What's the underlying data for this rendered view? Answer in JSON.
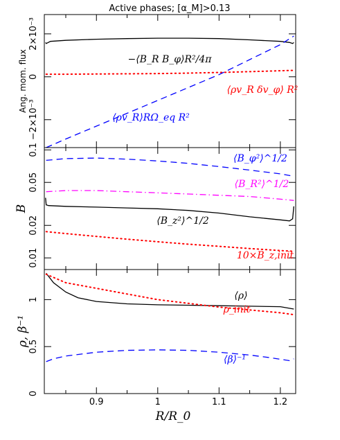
{
  "chart_data": [
    {
      "type": "line",
      "title": "Active phases; [α_M]>0.13",
      "ylabel": "Ang. mom. flux",
      "xlim": [
        0.815,
        1.225
      ],
      "ylim": [
        -0.0033,
        0.0029
      ],
      "yticks": [
        -0.002,
        0,
        0.002
      ],
      "yticklabels": [
        "−2×10⁻³",
        "0",
        "2×10⁻³"
      ],
      "series": [
        {
          "name": "−⟨B_R B_φ⟩R²/4π",
          "color": "#000000",
          "dash": "solid",
          "x": [
            0.817,
            0.818,
            0.825,
            0.85,
            0.9,
            0.95,
            1.0,
            1.05,
            1.1,
            1.15,
            1.2,
            1.215,
            1.22,
            1.222
          ],
          "y": [
            0.0016,
            0.00155,
            0.00165,
            0.0017,
            0.00175,
            0.00178,
            0.0018,
            0.0018,
            0.00178,
            0.00172,
            0.00165,
            0.0016,
            0.00155,
            0.0016
          ]
        },
        {
          "name": "⟨ρv_R δv_φ⟩R²",
          "color": "#ff0000",
          "dash": "dot",
          "x": [
            0.818,
            0.85,
            0.9,
            0.95,
            1.0,
            1.05,
            1.1,
            1.15,
            1.2,
            1.222
          ],
          "y": [
            0.00012,
            0.00012,
            0.00013,
            0.00014,
            0.00015,
            0.00017,
            0.0002,
            0.00024,
            0.00028,
            0.0003
          ]
        },
        {
          "name": "⟨ρv_R⟩RΩ_eq R²",
          "color": "#0000ff",
          "dash": "dash",
          "x": [
            0.818,
            0.85,
            0.9,
            0.95,
            1.0,
            1.05,
            1.1,
            1.15,
            1.2,
            1.222
          ],
          "y": [
            -0.0033,
            -0.0029,
            -0.0023,
            -0.0017,
            -0.0011,
            -0.0005,
            0.0001,
            0.0008,
            0.0015,
            0.0019
          ]
        }
      ],
      "annotations": [
        {
          "text": "−⟨B_R B_φ⟩R²/4π",
          "color": "#000000"
        },
        {
          "text": "⟨ρv_R δv_φ⟩ R²",
          "color": "#ff0000"
        },
        {
          "text": "⟨ρv_R⟩RΩ_eq R²",
          "color": "#0000ff"
        }
      ]
    },
    {
      "type": "line",
      "ylabel": "B",
      "yscale": "log",
      "ylim": [
        0.0078,
        0.105
      ],
      "yticks": [
        0.01,
        0.02,
        0.05,
        0.1
      ],
      "yticklabels": [
        "0.01",
        "0.02",
        "0.05",
        "0.1"
      ],
      "series": [
        {
          "name": "⟨B_φ²⟩^1/2",
          "color": "#0000ff",
          "dash": "dash",
          "x": [
            0.818,
            0.85,
            0.9,
            0.95,
            1.0,
            1.05,
            1.1,
            1.15,
            1.2,
            1.222
          ],
          "y": [
            0.08,
            0.083,
            0.084,
            0.082,
            0.079,
            0.075,
            0.07,
            0.065,
            0.06,
            0.057
          ]
        },
        {
          "name": "⟨B_R²⟩^1/2",
          "color": "#ff00ff",
          "dash": "dashdot",
          "x": [
            0.818,
            0.85,
            0.9,
            0.95,
            1.0,
            1.05,
            1.1,
            1.15,
            1.2,
            1.222
          ],
          "y": [
            0.041,
            0.042,
            0.042,
            0.041,
            0.04,
            0.039,
            0.038,
            0.037,
            0.035,
            0.034
          ]
        },
        {
          "name": "⟨B_z²⟩^1/2",
          "color": "#000000",
          "dash": "solid",
          "x": [
            0.817,
            0.818,
            0.822,
            0.85,
            0.9,
            0.95,
            1.0,
            1.05,
            1.1,
            1.15,
            1.2,
            1.215,
            1.22,
            1.222
          ],
          "y": [
            0.036,
            0.031,
            0.0305,
            0.03,
            0.0295,
            0.029,
            0.0285,
            0.0275,
            0.026,
            0.024,
            0.0225,
            0.022,
            0.023,
            0.03
          ]
        },
        {
          "name": "10×B_z,init",
          "color": "#ff0000",
          "dash": "dot",
          "x": [
            0.818,
            0.85,
            0.9,
            0.95,
            1.0,
            1.05,
            1.1,
            1.15,
            1.2,
            1.222
          ],
          "y": [
            0.0175,
            0.0168,
            0.0158,
            0.0149,
            0.0141,
            0.0134,
            0.0128,
            0.0122,
            0.0117,
            0.0115
          ]
        }
      ],
      "annotations": [
        {
          "text": "⟨B_φ²⟩^1/2",
          "color": "#0000ff"
        },
        {
          "text": "⟨B_R²⟩^1/2",
          "color": "#ff00ff"
        },
        {
          "text": "⟨B_z²⟩^1/2",
          "color": "#000000"
        },
        {
          "text": "10×B_z,init",
          "color": "#ff0000"
        }
      ]
    },
    {
      "type": "line",
      "xlabel": "R/R_0",
      "ylabel": "ρ, β⁻¹",
      "ylim": [
        0,
        1.32
      ],
      "yticks": [
        0,
        0.5,
        1
      ],
      "yticklabels": [
        "0",
        "0.5",
        "1"
      ],
      "xticks": [
        0.9,
        1.0,
        1.1,
        1.2
      ],
      "xticklabels": [
        "0.9",
        "1",
        "1.1",
        "1.2"
      ],
      "series": [
        {
          "name": "⟨ρ⟩",
          "color": "#000000",
          "dash": "solid",
          "x": [
            0.818,
            0.83,
            0.85,
            0.87,
            0.9,
            0.95,
            1.0,
            1.05,
            1.1,
            1.15,
            1.2,
            1.222
          ],
          "y": [
            1.28,
            1.18,
            1.08,
            1.02,
            0.98,
            0.955,
            0.945,
            0.94,
            0.935,
            0.93,
            0.925,
            0.9
          ]
        },
        {
          "name": "ρ_init",
          "color": "#ff0000",
          "dash": "dot",
          "x": [
            0.818,
            0.85,
            0.9,
            0.95,
            1.0,
            1.05,
            1.1,
            1.15,
            1.2,
            1.222
          ],
          "y": [
            1.27,
            1.18,
            1.12,
            1.06,
            1.0,
            0.96,
            0.92,
            0.89,
            0.86,
            0.84
          ]
        },
        {
          "name": "⟨β⟩⁻¹",
          "color": "#0000ff",
          "dash": "dash",
          "x": [
            0.818,
            0.83,
            0.85,
            0.9,
            0.95,
            1.0,
            1.05,
            1.1,
            1.15,
            1.18,
            1.2,
            1.215,
            1.222
          ],
          "y": [
            0.34,
            0.37,
            0.4,
            0.44,
            0.46,
            0.465,
            0.46,
            0.44,
            0.41,
            0.385,
            0.365,
            0.35,
            0.37
          ]
        }
      ],
      "annotations": [
        {
          "text": "⟨ρ⟩",
          "color": "#000000"
        },
        {
          "text": "ρ_init",
          "color": "#ff0000"
        },
        {
          "text": "⟨β⟩⁻¹",
          "color": "#0000ff"
        }
      ]
    }
  ]
}
